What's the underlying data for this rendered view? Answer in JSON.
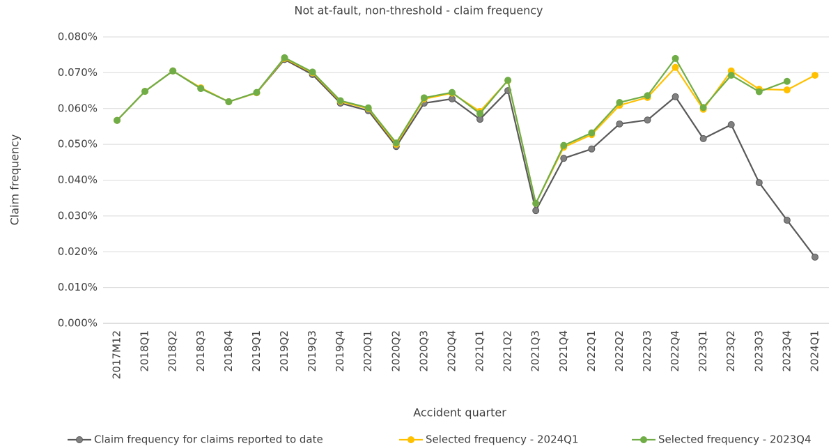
{
  "chart_data": {
    "type": "line",
    "title": "Not at-fault, non-threshold - claim frequency",
    "x_label": "Accident quarter",
    "y_label": "Claim frequency",
    "categories": [
      "2017M12",
      "2018Q1",
      "2018Q2",
      "2018Q3",
      "2018Q4",
      "2019Q1",
      "2019Q2",
      "2019Q3",
      "2019Q4",
      "2020Q1",
      "2020Q2",
      "2020Q3",
      "2020Q4",
      "2021Q1",
      "2021Q2",
      "2021Q3",
      "2021Q4",
      "2022Q1",
      "2022Q2",
      "2022Q3",
      "2022Q4",
      "2023Q1",
      "2023Q2",
      "2023Q3",
      "2023Q4",
      "2024Q1"
    ],
    "ylim": [
      0,
      0.08
    ],
    "yticks": [
      {
        "value": 0,
        "label": "0.000%"
      },
      {
        "value": 0.01,
        "label": "0.010%"
      },
      {
        "value": 0.02,
        "label": "0.020%"
      },
      {
        "value": 0.03,
        "label": "0.030%"
      },
      {
        "value": 0.04,
        "label": "0.040%"
      },
      {
        "value": 0.05,
        "label": "0.050%"
      },
      {
        "value": 0.06,
        "label": "0.060%"
      },
      {
        "value": 0.07,
        "label": "0.070%"
      },
      {
        "value": 0.08,
        "label": "0.080%"
      }
    ],
    "grid": true,
    "legend": "bottom",
    "series": [
      {
        "name": "Claim frequency for claims reported to date",
        "color": "#595959",
        "marker_color": "#808080",
        "values": [
          0.0567,
          0.0648,
          0.0705,
          0.0656,
          0.0619,
          0.0644,
          0.0737,
          0.0695,
          0.0615,
          0.0594,
          0.0494,
          0.0615,
          0.0627,
          0.057,
          0.065,
          0.0315,
          0.0461,
          0.0487,
          0.0557,
          0.0568,
          0.0633,
          0.0516,
          0.0555,
          0.0393,
          0.0288,
          0.0185
        ]
      },
      {
        "name": "Selected frequency - 2024Q1",
        "color": "#ffc000",
        "marker_color": "#ffc000",
        "values": [
          0.0567,
          0.0648,
          0.0705,
          0.0658,
          0.0619,
          0.0644,
          0.074,
          0.07,
          0.062,
          0.06,
          0.05,
          0.0627,
          0.0643,
          0.0592,
          0.0678,
          0.0335,
          0.0492,
          0.0527,
          0.0609,
          0.0631,
          0.0715,
          0.0598,
          0.0705,
          0.0654,
          0.0652,
          0.0693
        ]
      },
      {
        "name": "Selected frequency - 2023Q4",
        "color": "#70ad47",
        "marker_color": "#70ad47",
        "values": [
          0.0567,
          0.0648,
          0.0705,
          0.0656,
          0.0619,
          0.0645,
          0.0742,
          0.0702,
          0.0622,
          0.0602,
          0.0504,
          0.063,
          0.0645,
          0.0586,
          0.0679,
          0.0335,
          0.0497,
          0.0532,
          0.0617,
          0.0636,
          0.074,
          0.0603,
          0.0693,
          0.0647,
          0.0676,
          null
        ]
      }
    ]
  }
}
